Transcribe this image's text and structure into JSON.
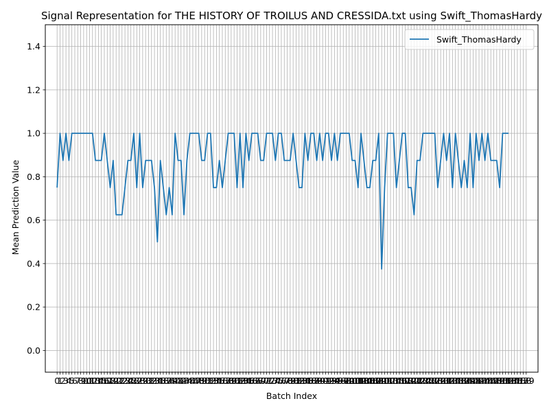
{
  "chart_data": {
    "type": "line",
    "title": "Signal Representation for THE HISTORY OF TROILUS AND CRESSIDA.txt using Swift_ThomasHardy",
    "xlabel": "Batch Index",
    "ylabel": "Mean Prediction Value",
    "xlim": [
      -4,
      163
    ],
    "ylim": [
      -0.1,
      1.5
    ],
    "yticks": [
      0.0,
      0.2,
      0.4,
      0.6,
      0.8,
      1.0,
      1.2,
      1.4
    ],
    "ytick_labels": [
      "0.0",
      "0.2",
      "0.4",
      "0.6",
      "0.8",
      "1.0",
      "1.2",
      "1.4"
    ],
    "grid": true,
    "legend_position": "top-right",
    "series": [
      {
        "name": "Swift_ThomasHardy",
        "color": "#1f77b4",
        "values": [
          0.75,
          1.0,
          0.875,
          1.0,
          0.875,
          1.0,
          1.0,
          1.0,
          1.0,
          1.0,
          1.0,
          1.0,
          1.0,
          0.875,
          0.875,
          0.875,
          1.0,
          0.875,
          0.75,
          0.875,
          0.625,
          0.625,
          0.625,
          0.75,
          0.875,
          0.875,
          1.0,
          0.75,
          1.0,
          0.75,
          0.875,
          0.875,
          0.875,
          0.75,
          0.5,
          0.875,
          0.75,
          0.625,
          0.75,
          0.625,
          1.0,
          0.875,
          0.875,
          0.625,
          0.875,
          1.0,
          1.0,
          1.0,
          1.0,
          0.875,
          0.875,
          1.0,
          1.0,
          0.75,
          0.75,
          0.875,
          0.75,
          0.875,
          1.0,
          1.0,
          1.0,
          0.75,
          1.0,
          0.75,
          1.0,
          0.875,
          1.0,
          1.0,
          1.0,
          0.875,
          0.875,
          1.0,
          1.0,
          1.0,
          0.875,
          1.0,
          1.0,
          0.875,
          0.875,
          0.875,
          1.0,
          0.875,
          0.75,
          0.75,
          1.0,
          0.875,
          1.0,
          1.0,
          0.875,
          1.0,
          0.875,
          1.0,
          1.0,
          0.875,
          1.0,
          0.875,
          1.0,
          1.0,
          1.0,
          1.0,
          0.875,
          0.875,
          0.75,
          1.0,
          0.875,
          0.75,
          0.75,
          0.875,
          0.875,
          1.0,
          0.375,
          0.75,
          1.0,
          1.0,
          1.0,
          0.75,
          0.875,
          1.0,
          1.0,
          0.75,
          0.75,
          0.625,
          0.875,
          0.875,
          1.0,
          1.0,
          1.0,
          1.0,
          1.0,
          0.75,
          0.875,
          1.0,
          0.875,
          1.0,
          0.75,
          1.0,
          0.875,
          0.75,
          0.875,
          0.75,
          1.0,
          0.75,
          1.0,
          0.875,
          1.0,
          0.875,
          1.0,
          0.875,
          0.875,
          0.875,
          0.75,
          1.0,
          1.0,
          1.0
        ]
      }
    ],
    "xticks": [
      0,
      1,
      2,
      3,
      4,
      5,
      6,
      7,
      8,
      9,
      10,
      11,
      12,
      13,
      14,
      15,
      16,
      17,
      18,
      19,
      20,
      21,
      22,
      23,
      24,
      25,
      26,
      27,
      28,
      29,
      30,
      31,
      32,
      33,
      34,
      35,
      36,
      37,
      38,
      39,
      40,
      41,
      42,
      43,
      44,
      45,
      46,
      47,
      48,
      49,
      50,
      51,
      52,
      53,
      54,
      55,
      56,
      57,
      58,
      59,
      60,
      61,
      62,
      63,
      64,
      65,
      66,
      67,
      68,
      69,
      70,
      71,
      72,
      73,
      74,
      75,
      76,
      77,
      78,
      79,
      80,
      81,
      82,
      83,
      84,
      85,
      86,
      87,
      88,
      89,
      90,
      91,
      92,
      93,
      94,
      95,
      96,
      97,
      98,
      99,
      100,
      101,
      102,
      103,
      104,
      105,
      106,
      107,
      108,
      109,
      110,
      111,
      112,
      113,
      114,
      115,
      116,
      117,
      118,
      119,
      120,
      121,
      122,
      123,
      124,
      125,
      126,
      127,
      128,
      129,
      130,
      131,
      132,
      133,
      134,
      135,
      136,
      137,
      138,
      139,
      140,
      141,
      142,
      143,
      144,
      145,
      146,
      147,
      148,
      149,
      150,
      151,
      152,
      153,
      154,
      155,
      156,
      157,
      158,
      159
    ]
  }
}
